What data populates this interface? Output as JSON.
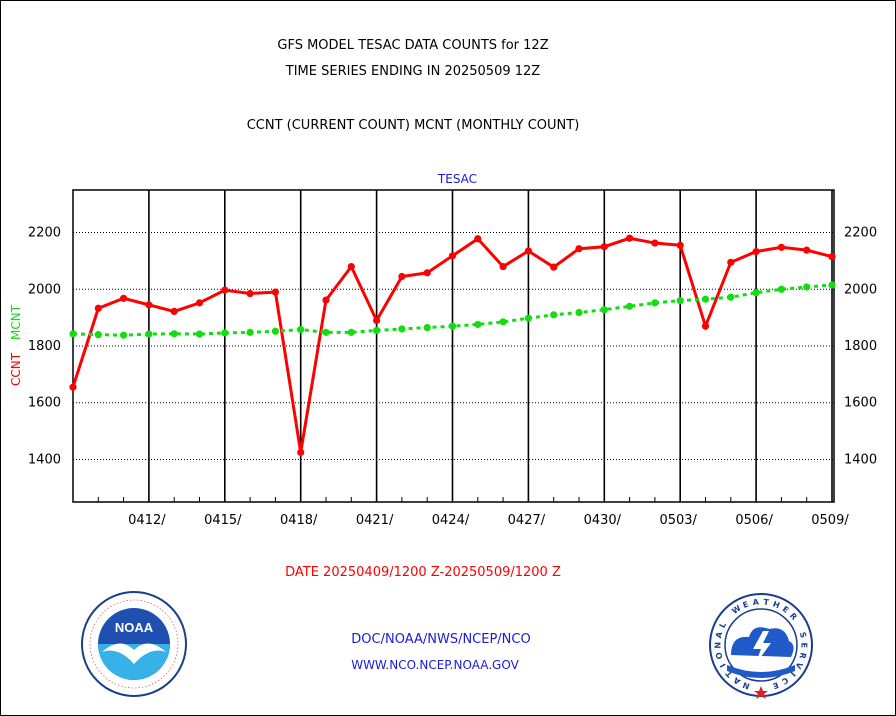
{
  "header": {
    "title": "GFS MODEL TESAC DATA COUNTS for 12Z",
    "subtitle": "TIME SERIES ENDING IN 20250509 12Z",
    "series_caption": "CCNT (CURRENT COUNT) MCNT (MONTHLY COUNT)"
  },
  "footer": {
    "date_range": "DATE 20250409/1200 Z-20250509/1200 Z",
    "credit_line1": "DOC/NOAA/NWS/NCEP/NCO",
    "credit_line2": "WWW.NCO.NCEP.NOAA.GOV"
  },
  "logos": {
    "noaa_label": "NOAA",
    "nws_label": "NATIONAL WEATHER SERVICE"
  },
  "chart_data": {
    "type": "line",
    "title": "TESAC",
    "ylabel_left": "CCNT",
    "ylabel_left2": "MCNT",
    "ylim": [
      1250,
      2350
    ],
    "yticks": [
      1400,
      1600,
      1800,
      2000,
      2200
    ],
    "ytick_labels": [
      "1400",
      "1600",
      "1800",
      "2000",
      "2200"
    ],
    "xlim": [
      0,
      30
    ],
    "xtick_days": [
      3,
      6,
      9,
      12,
      15,
      18,
      21,
      24,
      27,
      30
    ],
    "xtick_labels": [
      "0412/",
      "0415/",
      "0418/",
      "0421/",
      "0424/",
      "0427/",
      "0430/",
      "0503/",
      "0506/",
      "0509/"
    ],
    "grid": true,
    "x": [
      0,
      1,
      2,
      3,
      4,
      5,
      6,
      7,
      8,
      9,
      10,
      11,
      12,
      13,
      14,
      15,
      16,
      17,
      18,
      19,
      20,
      21,
      22,
      23,
      24,
      25,
      26,
      27,
      28,
      29,
      30
    ],
    "series": [
      {
        "name": "CCNT",
        "color": "#ff0000",
        "values": [
          1655,
          1933,
          1968,
          1945,
          1922,
          1952,
          1997,
          1985,
          1990,
          1425,
          1962,
          2080,
          1890,
          2045,
          2058,
          2118,
          2178,
          2080,
          2135,
          2078,
          2143,
          2150,
          2180,
          2163,
          2155,
          1870,
          2095,
          2133,
          2148,
          2138,
          2115
        ]
      },
      {
        "name": "MCNT",
        "color": "#11dd11",
        "values": [
          1843,
          1840,
          1838,
          1842,
          1843,
          1842,
          1846,
          1848,
          1852,
          1858,
          1848,
          1848,
          1855,
          1860,
          1865,
          1870,
          1876,
          1885,
          1898,
          1910,
          1918,
          1928,
          1940,
          1952,
          1960,
          1965,
          1972,
          1988,
          2000,
          2008,
          2015
        ]
      }
    ]
  }
}
